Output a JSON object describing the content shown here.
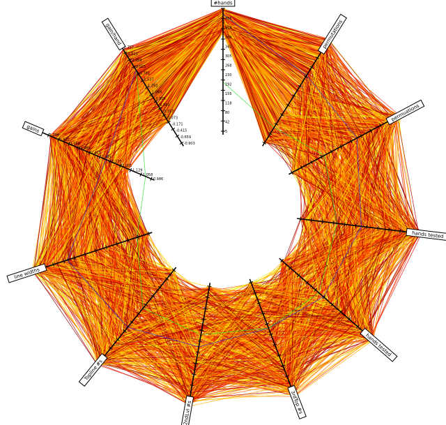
{
  "chart_data": {
    "type": "parallel-coordinates-radial",
    "title": "",
    "axes": [
      {
        "label": "#hands",
        "ticks": [
          "455",
          "418",
          "380",
          "342",
          "305",
          "268",
          "230",
          "192",
          "155",
          "118",
          "80",
          "42",
          "5"
        ]
      },
      {
        "label": "permutations",
        "ticks": []
      },
      {
        "label": "permuations",
        "ticks": []
      },
      {
        "label": "hands tested",
        "ticks": []
      },
      {
        "label": "hands tested",
        "ticks": []
      },
      {
        "label": "3rdTop #s",
        "ticks": []
      },
      {
        "label": "2ndLvl #s",
        "ticks": []
      },
      {
        "label": "Topline #s",
        "ticks": []
      },
      {
        "label": "line widths",
        "ticks": []
      },
      {
        "label": "gains",
        "ticks": [
          "1.704",
          "1.632",
          "1.560",
          "1.489",
          "1.417",
          "1.345",
          "1.273",
          "1.201",
          "1.129",
          "1.058",
          "0.986"
        ]
      },
      {
        "label": "gain/hand",
        "ticks": [
          "2.757",
          "2.513",
          "2.269",
          "2.025",
          "1.781",
          "1.537",
          "1.293",
          "1.049",
          "0.805",
          "0.561",
          "0.317",
          "0.073",
          "-0.171",
          "-0.415",
          "-0.659",
          "-0.903"
        ]
      }
    ],
    "series_colors": [
      "#8b0000",
      "#b30000",
      "#dd1100",
      "#ff3300",
      "#ff6600",
      "#ff8800",
      "#ffaa00",
      "#ffcc00",
      "#eeee00"
    ],
    "highlight_colors": {
      "blue": "#3333cc",
      "green": "#33dd33"
    },
    "line_count": 600
  }
}
